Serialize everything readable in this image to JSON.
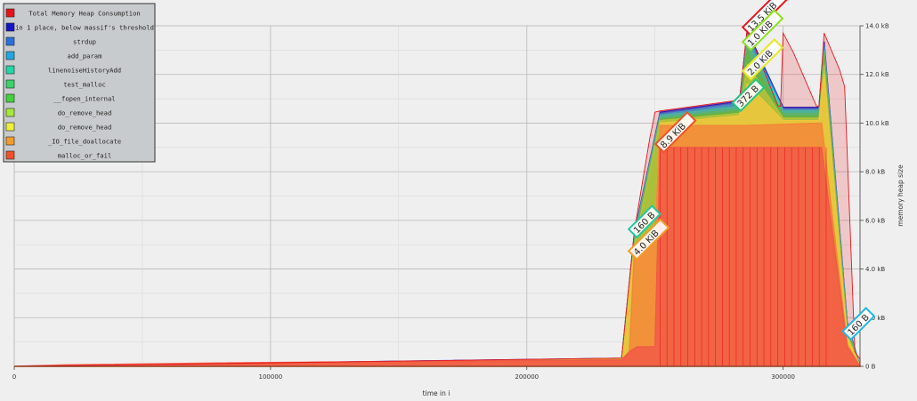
{
  "chart_data": {
    "type": "area",
    "title": "",
    "xlabel": "time in i",
    "ylabel": "memory heap size",
    "xlim": [
      0,
      330000
    ],
    "ylim": [
      0,
      14000
    ],
    "x_ticks": [
      "0",
      "100000",
      "200000",
      "300000"
    ],
    "y_ticks": [
      "0 B",
      "2.0 kB",
      "4.0 kB",
      "6.0 kB",
      "8.0 kB",
      "10.0 kB",
      "12.0 kB",
      "14.0 kB"
    ],
    "grid": true,
    "legend": "top-left",
    "legend_entries": [
      {
        "label": "Total Memory Heap Consumption",
        "color": "#e8141c"
      },
      {
        "label": "in 1 place, below massif's threshold",
        "color": "#1515c8"
      },
      {
        "label": "strdup",
        "color": "#2b6fdc"
      },
      {
        "label": "add_param",
        "color": "#22a7e0"
      },
      {
        "label": "linenoiseHistoryAdd",
        "color": "#22d6a8"
      },
      {
        "label": "test_malloc",
        "color": "#39d36a"
      },
      {
        "label": "__fopen_internal",
        "color": "#42d33a"
      },
      {
        "label": "do_remove_head",
        "color": "#a6e83a"
      },
      {
        "label": "do_remove_head",
        "color": "#eef03c"
      },
      {
        "label": "_IO_file_doallocate",
        "color": "#f29c2c"
      },
      {
        "label": "malloc_or_fail",
        "color": "#f2502a"
      }
    ],
    "series": [
      {
        "name": "malloc_or_fail",
        "color": "#f26a50",
        "x": [
          0,
          20000,
          80000,
          150000,
          200000,
          237000,
          240000,
          243000,
          248000,
          250000,
          252000,
          300000,
          315000,
          325000,
          330000
        ],
        "values": [
          0,
          60,
          140,
          200,
          240,
          260,
          600,
          800,
          800,
          800,
          9000,
          9000,
          9000,
          800,
          0
        ]
      },
      {
        "name": "_IO_file_doallocate",
        "color": "#f6a040",
        "x": [
          0,
          237000,
          240000,
          242000,
          246000,
          250000,
          252000,
          285000,
          300000,
          315000,
          325000,
          330000
        ],
        "values": [
          0,
          280,
          600,
          4800,
          5200,
          5300,
          9900,
          9900,
          9950,
          10000,
          900,
          0
        ]
      },
      {
        "name": "do_remove_head",
        "color": "#f0ee44",
        "x": [
          0,
          237000,
          242000,
          250000,
          252000,
          283000,
          286000,
          300000,
          314000,
          316000,
          325000,
          330000
        ],
        "values": [
          0,
          290,
          4900,
          5300,
          10000,
          10300,
          11600,
          10100,
          10100,
          12000,
          1200,
          0
        ]
      },
      {
        "name": "do_remove_head",
        "color": "#aee840",
        "x": [
          0,
          237000,
          242000,
          252000,
          283000,
          286000,
          300000,
          314000,
          316000,
          325000,
          330000
        ],
        "values": [
          0,
          295,
          5000,
          10100,
          10400,
          12400,
          10200,
          10200,
          12400,
          1300,
          0
        ]
      },
      {
        "name": "__fopen_internal",
        "color": "#4cd54c",
        "x": [
          0,
          237000,
          242000,
          252000,
          283000,
          286000,
          300000,
          314000,
          316000,
          325000,
          330000
        ],
        "values": [
          0,
          300,
          5100,
          10150,
          10500,
          12900,
          10300,
          10300,
          12700,
          1400,
          0
        ]
      },
      {
        "name": "test_malloc",
        "color": "#3ed680",
        "x": [
          0,
          237000,
          242000,
          252000,
          283000,
          286000,
          300000,
          314000,
          316000,
          325000,
          330000
        ],
        "values": [
          0,
          305,
          5200,
          10200,
          10600,
          13200,
          10400,
          10400,
          12900,
          1500,
          0
        ]
      },
      {
        "name": "linenoiseHistoryAdd",
        "color": "#2ed8b4",
        "x": [
          0,
          237000,
          242000,
          252000,
          283000,
          286000,
          300000,
          314000,
          316000,
          325000,
          330000
        ],
        "values": [
          0,
          310,
          5350,
          10300,
          10700,
          13400,
          10500,
          10500,
          13000,
          1600,
          0
        ]
      },
      {
        "name": "add_param",
        "color": "#28aee6",
        "x": [
          0,
          237000,
          242000,
          252000,
          283000,
          286000,
          300000,
          314000,
          316000,
          325000,
          330000
        ],
        "values": [
          0,
          315,
          5400,
          10350,
          10800,
          13600,
          10550,
          10550,
          13150,
          1700,
          0
        ]
      },
      {
        "name": "strdup",
        "color": "#2f70de",
        "x": [
          0,
          237000,
          242000,
          252000,
          283000,
          286000,
          300000,
          314000,
          316000,
          325000,
          330000
        ],
        "values": [
          0,
          320,
          5450,
          10400,
          10850,
          13700,
          10600,
          10600,
          13250,
          1750,
          0
        ]
      },
      {
        "name": "in 1 place, below massif's threshold",
        "color": "#1a1ac8",
        "x": [
          0,
          237000,
          242000,
          252000,
          283000,
          286000,
          300000,
          314000,
          316000,
          325000,
          330000
        ],
        "values": [
          0,
          330,
          5500,
          10450,
          10900,
          13800,
          10650,
          10650,
          13350,
          1800,
          0
        ]
      }
    ],
    "total_envelope": {
      "name": "Total Memory Heap Consumption",
      "color": "#e8141c",
      "x": [
        0,
        237000,
        242000,
        248000,
        249000,
        250000,
        252000,
        283000,
        286000,
        298000,
        299000,
        300000,
        304000,
        313000,
        314000,
        316000,
        322000,
        324000,
        328000,
        330000
      ],
      "values": [
        0,
        340,
        5600,
        9400,
        9900,
        10450,
        10500,
        10950,
        13900,
        10700,
        10700,
        13700,
        12900,
        10700,
        10700,
        13700,
        12200,
        11500,
        600,
        300
      ]
    },
    "peak_labels": [
      {
        "text": "13.5 KiB",
        "x": 286000,
        "y": 13900,
        "color": "#e8141c"
      },
      {
        "text": "1.0 KiB",
        "x": 286000,
        "y": 13300,
        "color": "#8ce020"
      },
      {
        "text": "2.0 KiB",
        "x": 286000,
        "y": 12100,
        "color": "#e8e820"
      },
      {
        "text": "372 B",
        "x": 282000,
        "y": 10800,
        "color": "#22c880"
      },
      {
        "text": "8.9 KiB",
        "x": 252000,
        "y": 9100,
        "color": "#f2502a"
      },
      {
        "text": "160 B",
        "x": 241500,
        "y": 5600,
        "color": "#22c8a0"
      },
      {
        "text": "4.0 KiB",
        "x": 241500,
        "y": 4700,
        "color": "#f29c2c"
      },
      {
        "text": "160 B",
        "x": 325000,
        "y": 1400,
        "color": "#22b8e0"
      }
    ]
  }
}
